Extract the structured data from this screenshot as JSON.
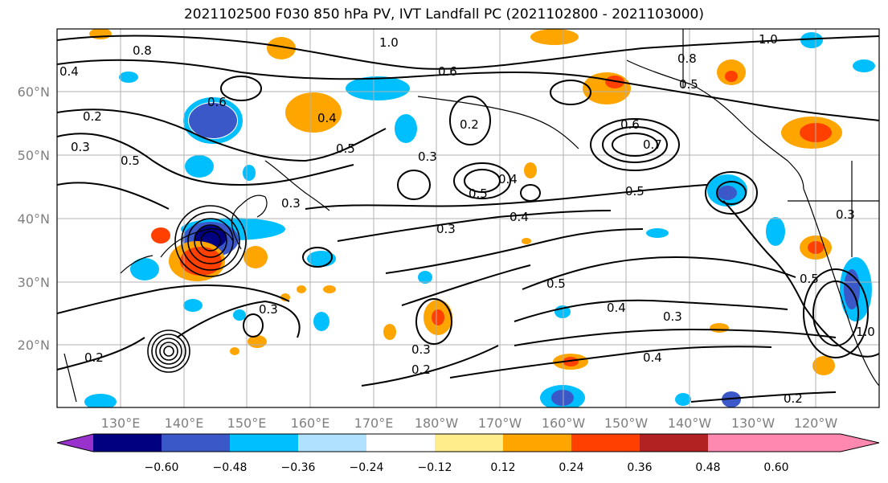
{
  "title": "2021102500 F030 850 hPa PV, IVT Landfall PC (2021102800 - 2021103000)",
  "latitude_labels": [
    "60°N",
    "50°N",
    "40°N",
    "30°N",
    "20°N"
  ],
  "longitude_labels": [
    "130°E",
    "140°E",
    "150°E",
    "160°E",
    "170°E",
    "180°W",
    "170°W",
    "160°W",
    "150°W",
    "140°W",
    "130°W",
    "120°W"
  ],
  "contour_labels": [
    "0.8",
    "1.0",
    "0.6",
    "0.4",
    "0.2",
    "0.3",
    "0.5",
    "0.6",
    "0.5",
    "0.4",
    "0.3",
    "0.3",
    "0.4",
    "0.3",
    "0.2",
    "0.5",
    "0.6",
    "0.5",
    "0.7",
    "0.4",
    "0.5",
    "0.4",
    "0.3",
    "0.4",
    "0.3",
    "0.2",
    "0.3",
    "0.5",
    "0.8",
    "1.0",
    "0.2",
    "1.0",
    "0.5",
    "0.3",
    "0.2"
  ],
  "colorbar": {
    "ticks": [
      "−0.60",
      "−0.48",
      "−0.36",
      "−0.24",
      "−0.12",
      "0.12",
      "0.24",
      "0.36",
      "0.48",
      "0.60"
    ],
    "colors": [
      "#9932cc",
      "#000080",
      "#3a58c8",
      "#00bfff",
      "#b0e2ff",
      "#ffffff",
      "#ffec8b",
      "#ffa500",
      "#ff4000",
      "#b22222",
      "#ff88b0"
    ]
  }
}
